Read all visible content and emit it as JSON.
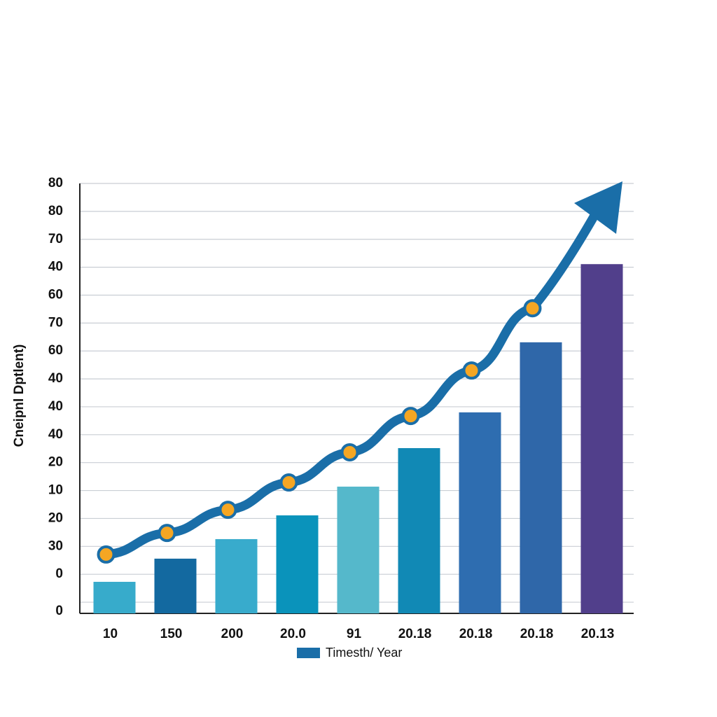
{
  "chart_data": {
    "type": "bar",
    "y_label": "Cneipnl Dptlent)",
    "categories": [
      "10",
      "150",
      "200",
      "20.0",
      "91",
      "20.18",
      "20.18",
      "20.18",
      "20.13"
    ],
    "series": [
      {
        "name": "Timesth/ Year",
        "type": "bar",
        "color": "#1a6ea8",
        "colors": [
          "#37abcb",
          "#1369a0",
          "#38abcc",
          "#0a93bb",
          "#55b8cb",
          "#1189b5",
          "#2e6db0",
          "#2f67a9",
          "#513f8b"
        ],
        "values": [
          0.73,
          1.56,
          2.26,
          3.11,
          4.14,
          5.52,
          6.8,
          9.31,
          12.11
        ]
      },
      {
        "type": "line",
        "color": "#1a6ea8",
        "marker_color": "#f5a623",
        "values": [
          1.71,
          2.48,
          3.31,
          4.29,
          5.37,
          6.67,
          8.3,
          10.53,
          null
        ]
      }
    ],
    "ylim": [
      -0.4,
      15
    ],
    "yticks": [
      {
        "value": 0,
        "label": "0"
      },
      {
        "value": 1,
        "label": "0"
      },
      {
        "value": 2,
        "label": "30"
      },
      {
        "value": 3,
        "label": "20"
      },
      {
        "value": 4,
        "label": "10"
      },
      {
        "value": 5,
        "label": "20"
      },
      {
        "value": 6,
        "label": "40"
      },
      {
        "value": 7,
        "label": "40"
      },
      {
        "value": 8,
        "label": "40"
      },
      {
        "value": 9,
        "label": "60"
      },
      {
        "value": 10,
        "label": "70"
      },
      {
        "value": 11,
        "label": "60"
      },
      {
        "value": 12,
        "label": "40"
      },
      {
        "value": 13,
        "label": "70"
      },
      {
        "value": 14,
        "label": "80"
      },
      {
        "value": 15,
        "label": "80"
      }
    ],
    "grid": true,
    "legend": "bottom"
  }
}
